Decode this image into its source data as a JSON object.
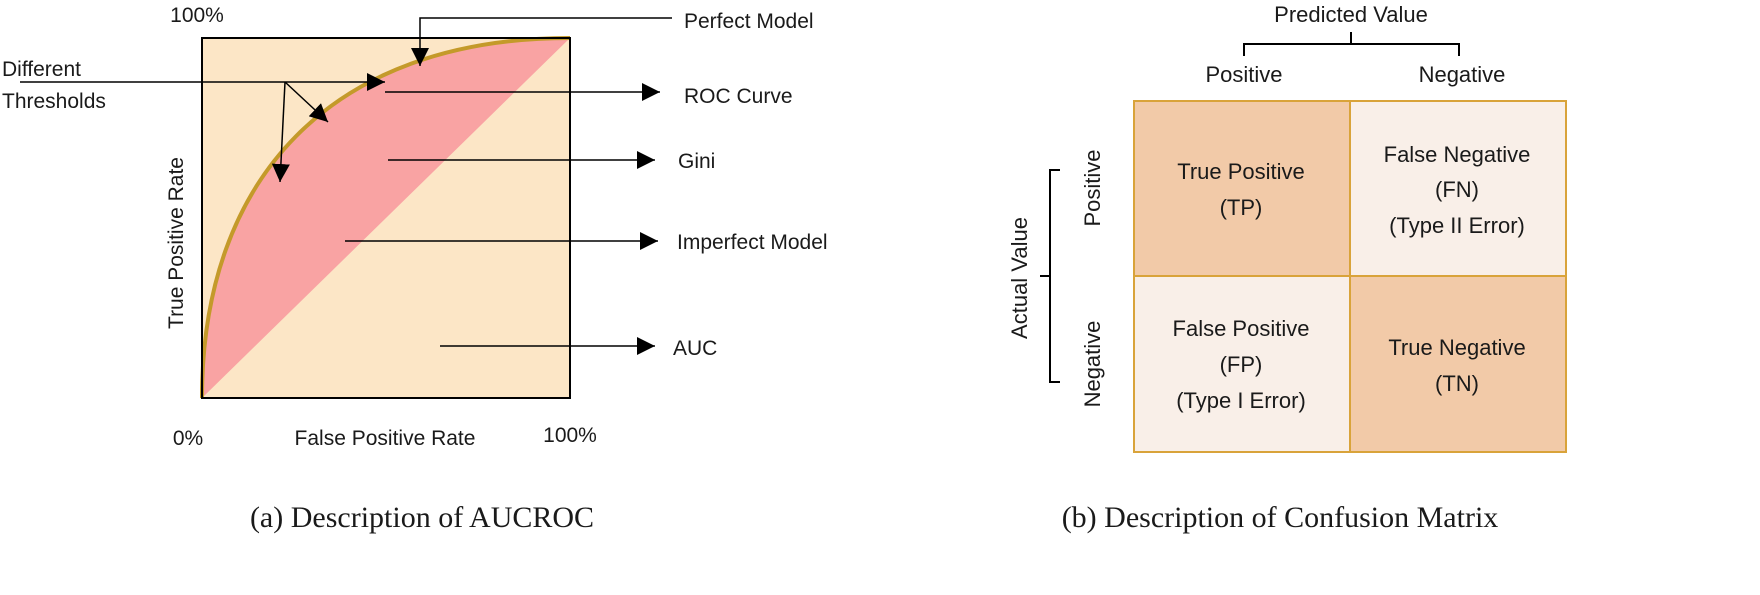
{
  "roc": {
    "caption": "(a) Description of AUCROC",
    "y_top_label": "100%",
    "origin_label": "0%",
    "x_right_label": "100%",
    "x_axis_label": "False Positive Rate",
    "y_axis_label": "True Positive Rate",
    "thresholds_label_line1": "Different",
    "thresholds_label_line2": "Thresholds",
    "callouts": {
      "perfect_model": "Perfect Model",
      "roc_curve": "ROC Curve",
      "gini": "Gini",
      "imperfect_model": "Imperfect Model",
      "auc": "AUC"
    },
    "colors": {
      "auc_fill": "#fce6c6",
      "gini_fill": "#f9a3a3",
      "curve": "#c49a2a",
      "frame": "#000000"
    }
  },
  "confusion": {
    "caption": "(b) Description of Confusion Matrix",
    "predicted_title": "Predicted Value",
    "actual_title": "Actual Value",
    "col_headers": [
      "Positive",
      "Negative"
    ],
    "row_headers": [
      "Positive",
      "Negative"
    ],
    "cells": {
      "tp": [
        "True Positive",
        "(TP)"
      ],
      "fn": [
        "False Negative",
        "(FN)",
        "(Type II Error)"
      ],
      "fp": [
        "False Positive",
        "(FP)",
        "(Type I Error)"
      ],
      "tn": [
        "True Negative",
        "(TN)"
      ]
    },
    "colors": {
      "dark_cell": "#f2caa8",
      "light_cell": "#f9efe8",
      "border": "#d9a33a"
    }
  }
}
